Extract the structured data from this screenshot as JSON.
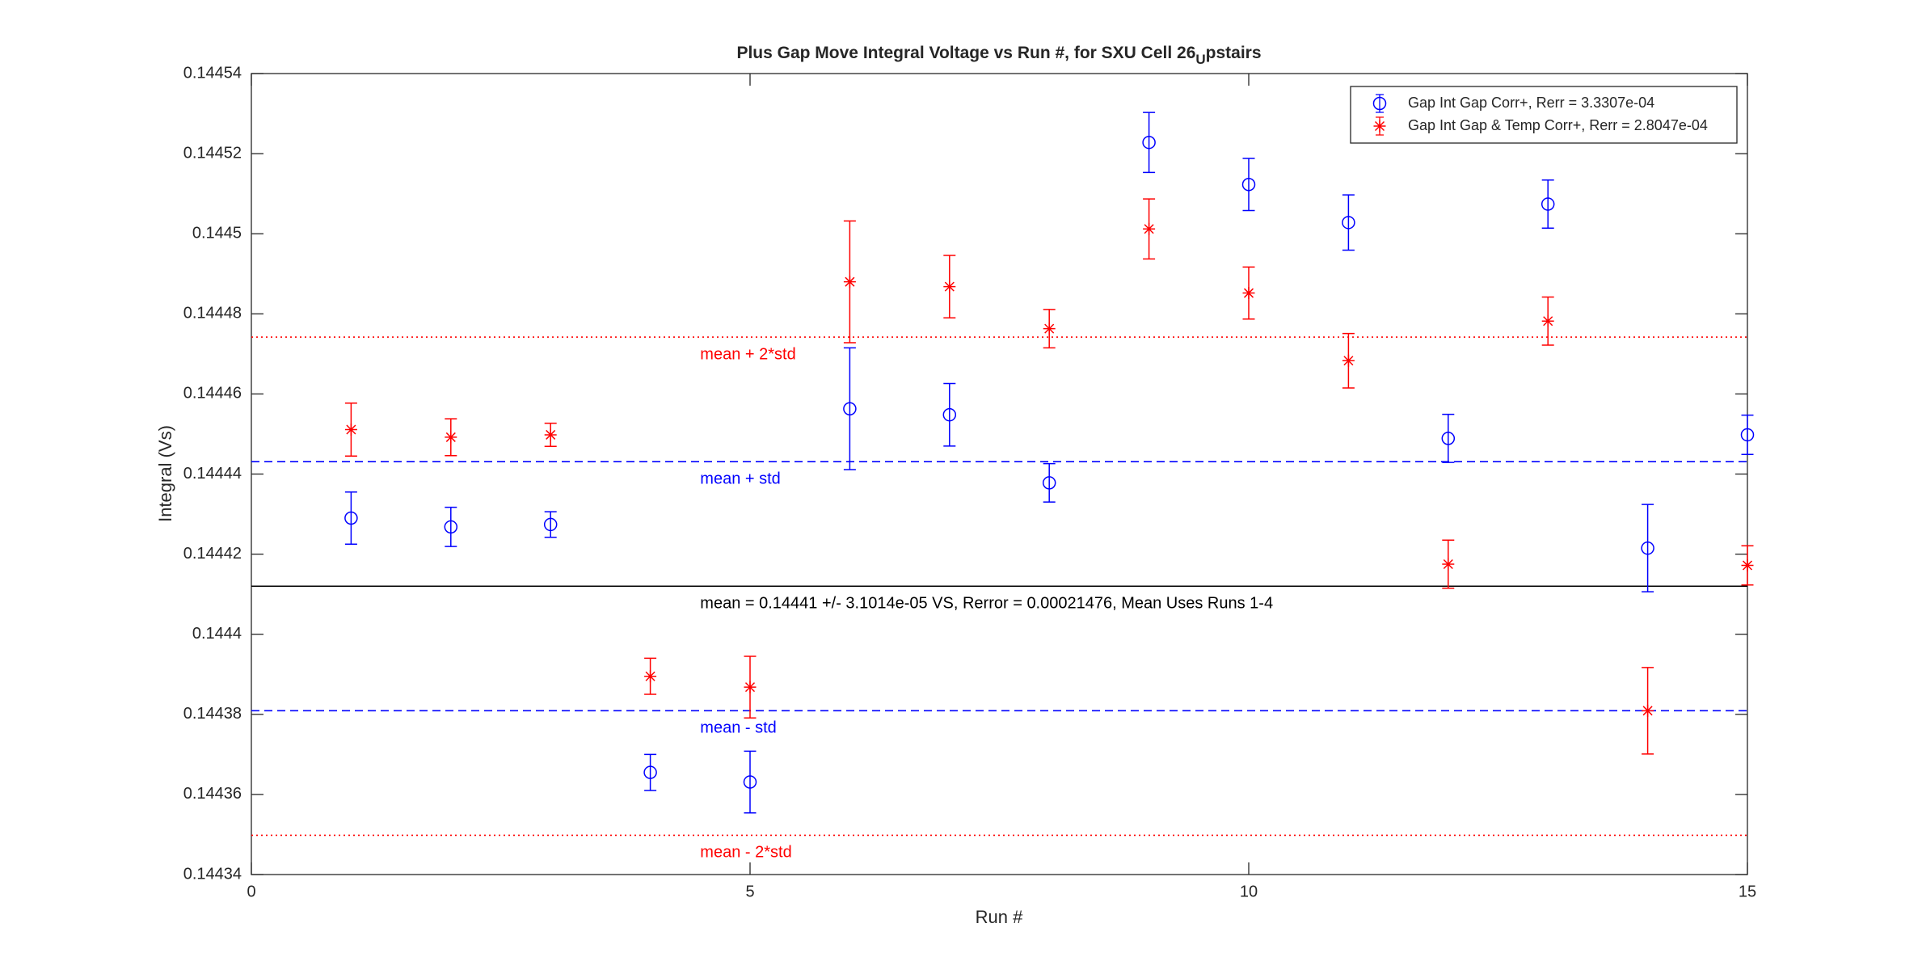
{
  "chart_data": {
    "type": "errorbar",
    "title": [
      "Plus Gap Move Integral Voltage vs Run #, for SXU Cell 26",
      "U",
      "pstairs"
    ],
    "xlabel": "Run #",
    "ylabel": "Integral (Vs)",
    "xlim": [
      0,
      15
    ],
    "xticks": [
      0,
      5,
      10,
      15
    ],
    "ylim": [
      0.14434,
      0.14454
    ],
    "yticks": [
      0.14434,
      0.14436,
      0.14438,
      0.1444,
      0.14442,
      0.14444,
      0.14446,
      0.14448,
      0.1445,
      0.14452,
      0.14454
    ],
    "grid": false,
    "legend": "top-right",
    "x": [
      1,
      2,
      3,
      4,
      5,
      6,
      7,
      8,
      9,
      10,
      11,
      12,
      13,
      14,
      15
    ],
    "series": [
      {
        "name": "Gap Int Gap Corr+, Rerr = 3.3307e-04",
        "color": "#0000ff",
        "marker": "o",
        "values": [
          0.144429,
          0.1444268,
          0.1444274,
          0.1443655,
          0.1443631,
          0.1444563,
          0.1444548,
          0.1444378,
          0.1445228,
          0.1445123,
          0.1445028,
          0.1444489,
          0.1445074,
          0.1444215,
          0.1444498
        ],
        "errors": [
          6.5e-06,
          4.9e-06,
          3.2e-06,
          4.5e-06,
          7.7e-06,
          1.52e-05,
          7.8e-06,
          4.8e-06,
          7.5e-06,
          6.5e-06,
          6.9e-06,
          6e-06,
          6e-06,
          1.09e-05,
          4.9e-06
        ]
      },
      {
        "name": "Gap Int Gap & Temp  Corr+, Rerr = 2.8047e-04",
        "color": "#ff0000",
        "marker": "*",
        "values": [
          0.1444511,
          0.1444492,
          0.1444498,
          0.1443895,
          0.1443868,
          0.144488,
          0.1444868,
          0.1444763,
          0.1445012,
          0.1444852,
          0.1444683,
          0.1444175,
          0.1444782,
          0.1443809,
          0.1444172
        ],
        "errors": [
          6.6e-06,
          4.6e-06,
          2.9e-06,
          4.5e-06,
          7.7e-06,
          1.52e-05,
          7.8e-06,
          4.8e-06,
          7.5e-06,
          6.5e-06,
          6.8e-06,
          6e-06,
          6e-06,
          1.08e-05,
          4.9e-06
        ]
      }
    ],
    "ref_lines": [
      {
        "label": "mean + 2*std",
        "value": 0.1444742,
        "color": "#ff0000",
        "style": "dotted"
      },
      {
        "label": "mean + std",
        "value": 0.1444431,
        "color": "#0000ff",
        "style": "dashed"
      },
      {
        "label": "mean = 0.14441 +/- 3.1014e-05 VS, Rerror = 0.00021476, Mean Uses Runs 1-4",
        "value": 0.144412,
        "color": "#000000",
        "style": "solid"
      },
      {
        "label": "mean - std",
        "value": 0.1443809,
        "color": "#0000ff",
        "style": "dashed"
      },
      {
        "label": "mean - 2*std",
        "value": 0.1443498,
        "color": "#ff0000",
        "style": "dotted"
      }
    ]
  }
}
